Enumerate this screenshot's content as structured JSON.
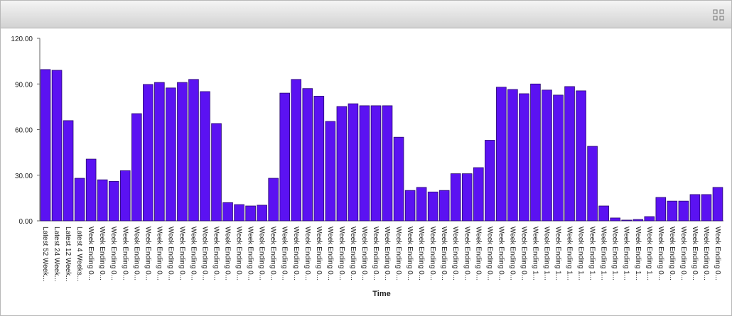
{
  "chart_data": {
    "type": "bar",
    "x_label": "Time",
    "color": "#5b12f2",
    "categories": [
      "Latest 52 Week...",
      "Latest 24 Week...",
      "Latest 12 Week...",
      "Latest 4 Weeks...",
      "Week Ending 0...",
      "Week Ending 0...",
      "Week Ending 0...",
      "Week Ending 0...",
      "Week Ending 0...",
      "Week Ending 0...",
      "Week Ending 0...",
      "Week Ending 0...",
      "Week Ending 0...",
      "Week Ending 0...",
      "Week Ending 0...",
      "Week Ending 0...",
      "Week Ending 0...",
      "Week Ending 0...",
      "Week Ending 0...",
      "Week Ending 0...",
      "Week Ending 0...",
      "Week Ending 0...",
      "Week Ending 0...",
      "Week Ending 0...",
      "Week Ending 0...",
      "Week Ending 0...",
      "Week Ending 0...",
      "Week Ending 0...",
      "Week Ending 0...",
      "Week Ending 0...",
      "Week Ending 0...",
      "Week Ending 0...",
      "Week Ending 0...",
      "Week Ending 0...",
      "Week Ending 0...",
      "Week Ending 0...",
      "Week Ending 0...",
      "Week Ending 0...",
      "Week Ending 0...",
      "Week Ending 0...",
      "Week Ending 0...",
      "Week Ending 0...",
      "Week Ending 0...",
      "Week Ending 1...",
      "Week Ending 1...",
      "Week Ending 1...",
      "Week Ending 1...",
      "Week Ending 1...",
      "Week Ending 1...",
      "Week Ending 1...",
      "Week Ending 1...",
      "Week Ending 1...",
      "Week Ending 1...",
      "Week Ending 1...",
      "Week Ending 0...",
      "Week Ending 0...",
      "Week Ending 0...",
      "Week Ending 0...",
      "Week Ending 0...",
      "Week Ending 0..."
    ],
    "values": [
      99.5,
      99,
      65.9,
      28,
      40.6,
      27,
      26,
      33,
      70.5,
      89.7,
      91,
      87.4,
      91,
      93,
      85,
      64,
      12,
      10.7,
      9.8,
      10.3,
      28,
      84,
      93,
      87,
      82,
      65.4,
      75.2,
      77,
      75.7,
      75.7,
      75.7,
      55,
      20,
      22,
      19,
      20,
      31,
      31,
      35,
      53,
      87.9,
      86.4,
      83.6,
      90,
      86,
      82.7,
      88.3,
      85.5,
      49,
      9.8,
      1.9,
      0.5,
      0.9,
      2.8,
      15.4,
      13,
      13,
      17.3,
      17.3,
      22
    ],
    "ylim": [
      0,
      120
    ],
    "yticks": [
      {
        "value": 0,
        "label": "0.00"
      },
      {
        "value": 30,
        "label": "30.00"
      },
      {
        "value": 60,
        "label": "60.00"
      },
      {
        "value": 90,
        "label": "90.00"
      },
      {
        "value": 120,
        "label": "120.00"
      }
    ]
  }
}
